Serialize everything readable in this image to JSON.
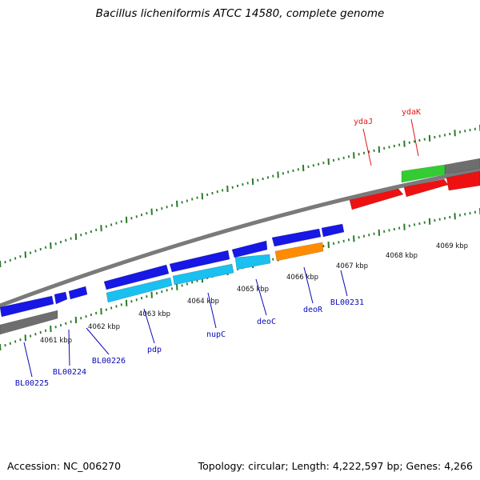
{
  "title": "Bacillus licheniformis ATCC 14580, complete genome",
  "footer": {
    "accession": "Accession: NC_006270",
    "summary": "Topology: circular; Length: 4,222,597 bp; Genes: 4,266"
  },
  "colors": {
    "backbone": "#7a7a7a",
    "cds": "#1717e6",
    "cds_light": "#19c0f0",
    "rna": "#ff8c00",
    "ruler": "#2a7a2a",
    "label_blue": "#0a0ab8",
    "label_red": "#e01818",
    "green_feature": "#33cc33",
    "gray_feature": "#6e6e6e",
    "red_feature": "#ee1111"
  },
  "ruler_labels": [
    "4061 kbp",
    "4062 kbp",
    "4063 kbp",
    "4064 kbp",
    "4065 kbp",
    "4066 kbp",
    "4067 kbp",
    "4068 kbp",
    "4069 kbp"
  ],
  "gene_labels": [
    {
      "text": "BL00225",
      "color": "blue"
    },
    {
      "text": "BL00224",
      "color": "blue"
    },
    {
      "text": "BL00226",
      "color": "blue"
    },
    {
      "text": "pdp",
      "color": "blue"
    },
    {
      "text": "nupC",
      "color": "blue"
    },
    {
      "text": "deoC",
      "color": "blue"
    },
    {
      "text": "deoR",
      "color": "blue"
    },
    {
      "text": "BL00231",
      "color": "blue"
    },
    {
      "text": "ydaJ",
      "color": "red"
    },
    {
      "text": "ydaK",
      "color": "red"
    }
  ]
}
